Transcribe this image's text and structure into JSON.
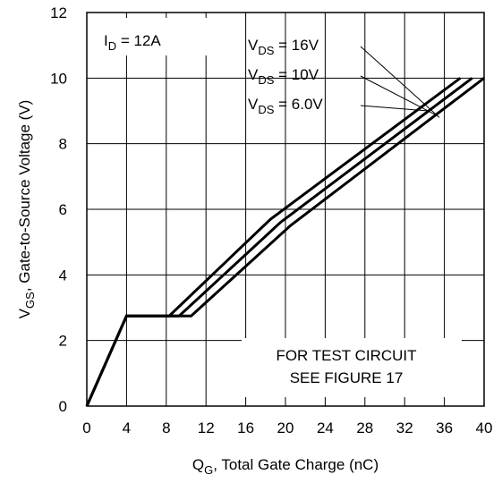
{
  "chart_data": {
    "type": "line",
    "xlabel": {
      "main": "Q",
      "sub": "G",
      "rest": ", Total Gate Charge (nC)"
    },
    "ylabel": {
      "main": "V",
      "sub": "GS",
      "rest": ", Gate-to-Source Voltage (V)"
    },
    "xlim": [
      0,
      40
    ],
    "ylim": [
      0,
      12
    ],
    "x_ticks": [
      0,
      4,
      8,
      12,
      16,
      20,
      24,
      28,
      32,
      36,
      40
    ],
    "y_ticks": [
      0,
      2,
      4,
      6,
      8,
      10,
      12
    ],
    "grid": true,
    "series": [
      {
        "name": "VDS = 16V",
        "points": [
          [
            0,
            0
          ],
          [
            4,
            2.75
          ],
          [
            10.5,
            2.75
          ],
          [
            20.5,
            5.5
          ],
          [
            40,
            10
          ]
        ]
      },
      {
        "name": "VDS = 10V",
        "points": [
          [
            0,
            0
          ],
          [
            4,
            2.75
          ],
          [
            9.3,
            2.75
          ],
          [
            19.5,
            5.6
          ],
          [
            38.8,
            10
          ]
        ]
      },
      {
        "name": "VDS = 6.0V",
        "points": [
          [
            0,
            0
          ],
          [
            4,
            2.75
          ],
          [
            8.3,
            2.75
          ],
          [
            18.5,
            5.7
          ],
          [
            37.6,
            10
          ]
        ]
      }
    ],
    "annotations": {
      "id_label": {
        "main": "I",
        "sub": "D",
        "rest": " = 12A"
      },
      "vds_labels": [
        {
          "main": "V",
          "sub": "DS",
          "rest": " = 16V"
        },
        {
          "main": "V",
          "sub": "DS",
          "rest": " = 10V"
        },
        {
          "main": "V",
          "sub": "DS",
          "rest": " = 6.0V"
        }
      ],
      "test_note": [
        "FOR TEST CIRCUIT",
        "SEE FIGURE 17"
      ]
    }
  }
}
